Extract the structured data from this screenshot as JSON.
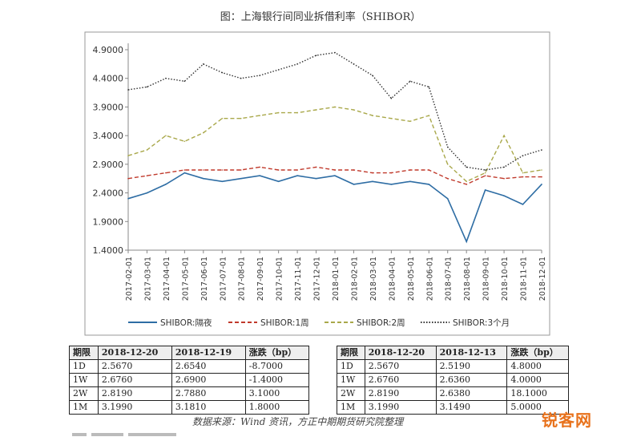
{
  "chart_data": {
    "type": "line",
    "title": "图：上海银行间同业拆借利率（SHIBOR）",
    "ylim": [
      1.4,
      4.9
    ],
    "yticks": [
      "4.9000",
      "4.4000",
      "3.9000",
      "3.4000",
      "2.9000",
      "2.4000",
      "1.9000",
      "1.4000"
    ],
    "ytick_values": [
      4.9,
      4.4,
      3.9,
      3.4,
      2.9,
      2.4,
      1.9,
      1.4
    ],
    "x_categories": [
      "2017-02-01",
      "2017-03-01",
      "2017-04-01",
      "2017-05-01",
      "2017-06-01",
      "2017-07-01",
      "2017-08-01",
      "2017-09-01",
      "2017-10-01",
      "2017-11-01",
      "2017-12-01",
      "2018-01-01",
      "2018-02-01",
      "2018-03-01",
      "2018-04-01",
      "2018-05-01",
      "2018-06-01",
      "2018-07-01",
      "2018-08-01",
      "2018-09-01",
      "2018-10-01",
      "2018-11-01",
      "2018-12-01"
    ],
    "legend_position": "bottom",
    "grid": false,
    "series": [
      {
        "name": "SHIBOR:隔夜",
        "color": "#2e6da4",
        "style": "solid",
        "values": [
          2.3,
          2.4,
          2.55,
          2.75,
          2.65,
          2.6,
          2.65,
          2.7,
          2.6,
          2.7,
          2.65,
          2.7,
          2.55,
          2.6,
          2.55,
          2.6,
          2.55,
          2.3,
          1.55,
          2.45,
          2.35,
          2.2,
          2.55
        ]
      },
      {
        "name": "SHIBOR:1周",
        "color": "#c0392b",
        "style": "dashed",
        "values": [
          2.65,
          2.7,
          2.75,
          2.8,
          2.8,
          2.8,
          2.8,
          2.85,
          2.8,
          2.8,
          2.85,
          2.8,
          2.8,
          2.75,
          2.75,
          2.8,
          2.8,
          2.65,
          2.55,
          2.7,
          2.65,
          2.68,
          2.68
        ]
      },
      {
        "name": "SHIBOR:2周",
        "color": "#a9a84a",
        "style": "dashed",
        "values": [
          3.05,
          3.15,
          3.4,
          3.3,
          3.45,
          3.7,
          3.7,
          3.75,
          3.8,
          3.8,
          3.85,
          3.9,
          3.85,
          3.75,
          3.7,
          3.65,
          3.75,
          2.9,
          2.6,
          2.75,
          3.4,
          2.75,
          2.8
        ]
      },
      {
        "name": "SHIBOR:3个月",
        "color": "#333333",
        "style": "dotted",
        "values": [
          4.2,
          4.25,
          4.4,
          4.35,
          4.65,
          4.5,
          4.4,
          4.45,
          4.55,
          4.65,
          4.8,
          4.85,
          4.65,
          4.45,
          4.05,
          4.35,
          4.25,
          3.2,
          2.85,
          2.8,
          2.85,
          3.05,
          3.15
        ]
      }
    ]
  },
  "tables": {
    "left": {
      "headers": [
        "期限",
        "2018-12-20",
        "2018-12-19",
        "涨跌（bp）"
      ],
      "rows": [
        [
          "1D",
          "2.5670",
          "2.6540",
          "-8.7000"
        ],
        [
          "1W",
          "2.6760",
          "2.6900",
          "-1.4000"
        ],
        [
          "2W",
          "2.8190",
          "2.7880",
          "3.1000"
        ],
        [
          "1M",
          "3.1990",
          "3.1810",
          "1.8000"
        ]
      ]
    },
    "right": {
      "headers": [
        "期限",
        "2018-12-20",
        "2018-12-13",
        "涨跌（bp）"
      ],
      "rows": [
        [
          "1D",
          "2.5670",
          "2.5190",
          "4.8000"
        ],
        [
          "1W",
          "2.6760",
          "2.6360",
          "4.0000"
        ],
        [
          "2W",
          "2.8190",
          "2.6380",
          "18.1000"
        ],
        [
          "1M",
          "3.1990",
          "3.1490",
          "5.0000"
        ]
      ]
    }
  },
  "source_note": "数据来源：Wind 资讯，方正中期期货研究院整理",
  "watermark": "锐客网"
}
